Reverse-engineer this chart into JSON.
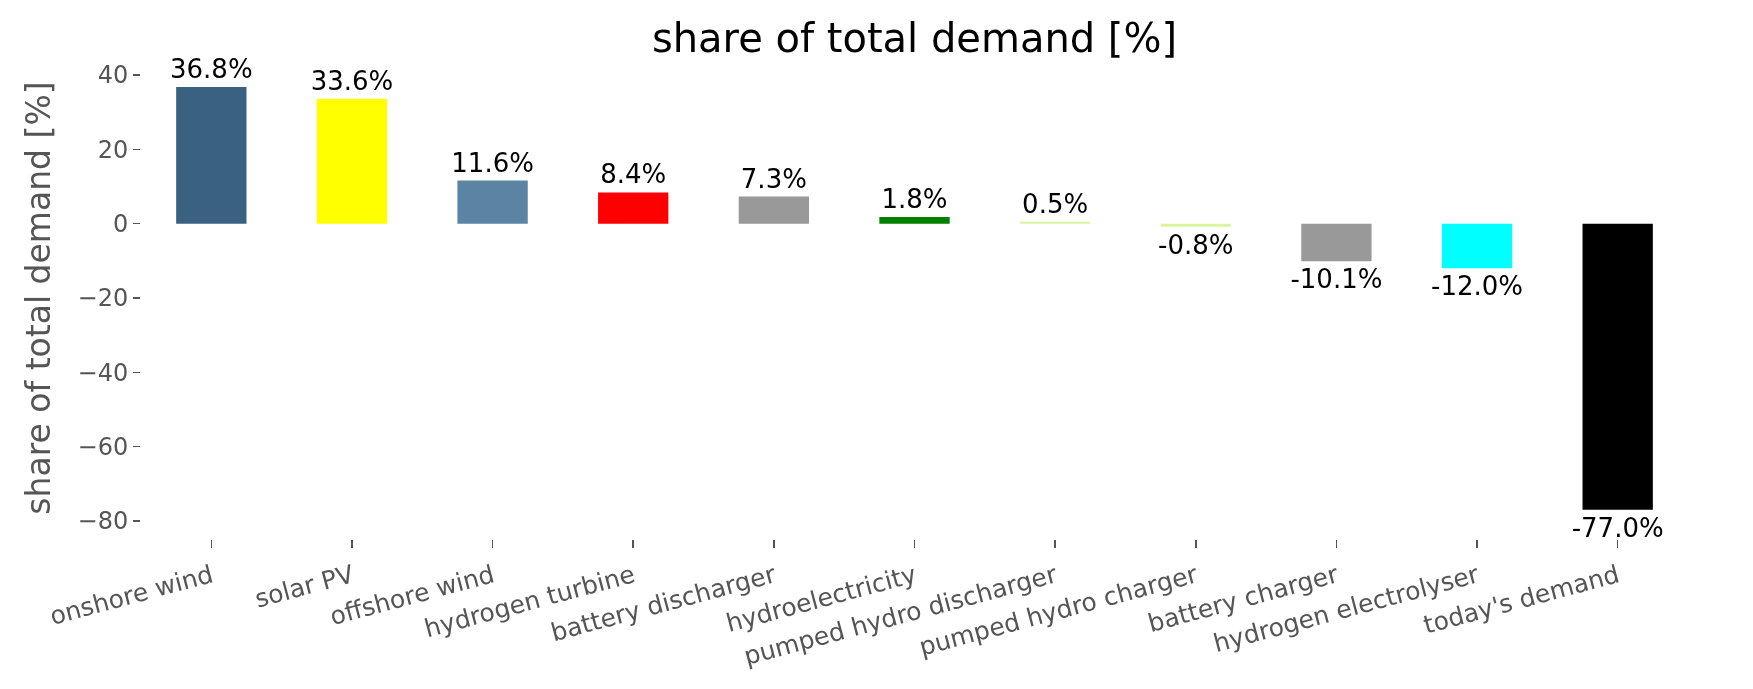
{
  "chart_data": {
    "type": "bar",
    "title": "share of total demand [%]",
    "ylabel": "share of total demand [%]",
    "categories": [
      "onshore wind",
      "solar PV",
      "offshore wind",
      "hydrogen turbine",
      "battery discharger",
      "hydroelectricity",
      "pumped hydro discharger",
      "pumped hydro charger",
      "battery charger",
      "hydrogen electrolyser",
      "today's demand"
    ],
    "values": [
      36.8,
      33.6,
      11.6,
      8.4,
      7.3,
      1.8,
      0.5,
      -0.8,
      -10.1,
      -12.0,
      -77.0
    ],
    "colors": [
      "#3b6182",
      "#ffff00",
      "#5b83a3",
      "#ff0000",
      "#999999",
      "#008000",
      "#d9f5a0",
      "#d9f5a0",
      "#999999",
      "#00ffff",
      "#000000"
    ],
    "value_labels": [
      "36.8%",
      "33.6%",
      "11.6%",
      "8.4%",
      "7.3%",
      "1.8%",
      "0.5%",
      "-0.8%",
      "-10.1%",
      "-12.0%",
      "-77.0%"
    ],
    "ylim": [
      -80,
      40
    ],
    "yticks": [
      -80,
      -60,
      -40,
      -20,
      0,
      20,
      40
    ]
  }
}
